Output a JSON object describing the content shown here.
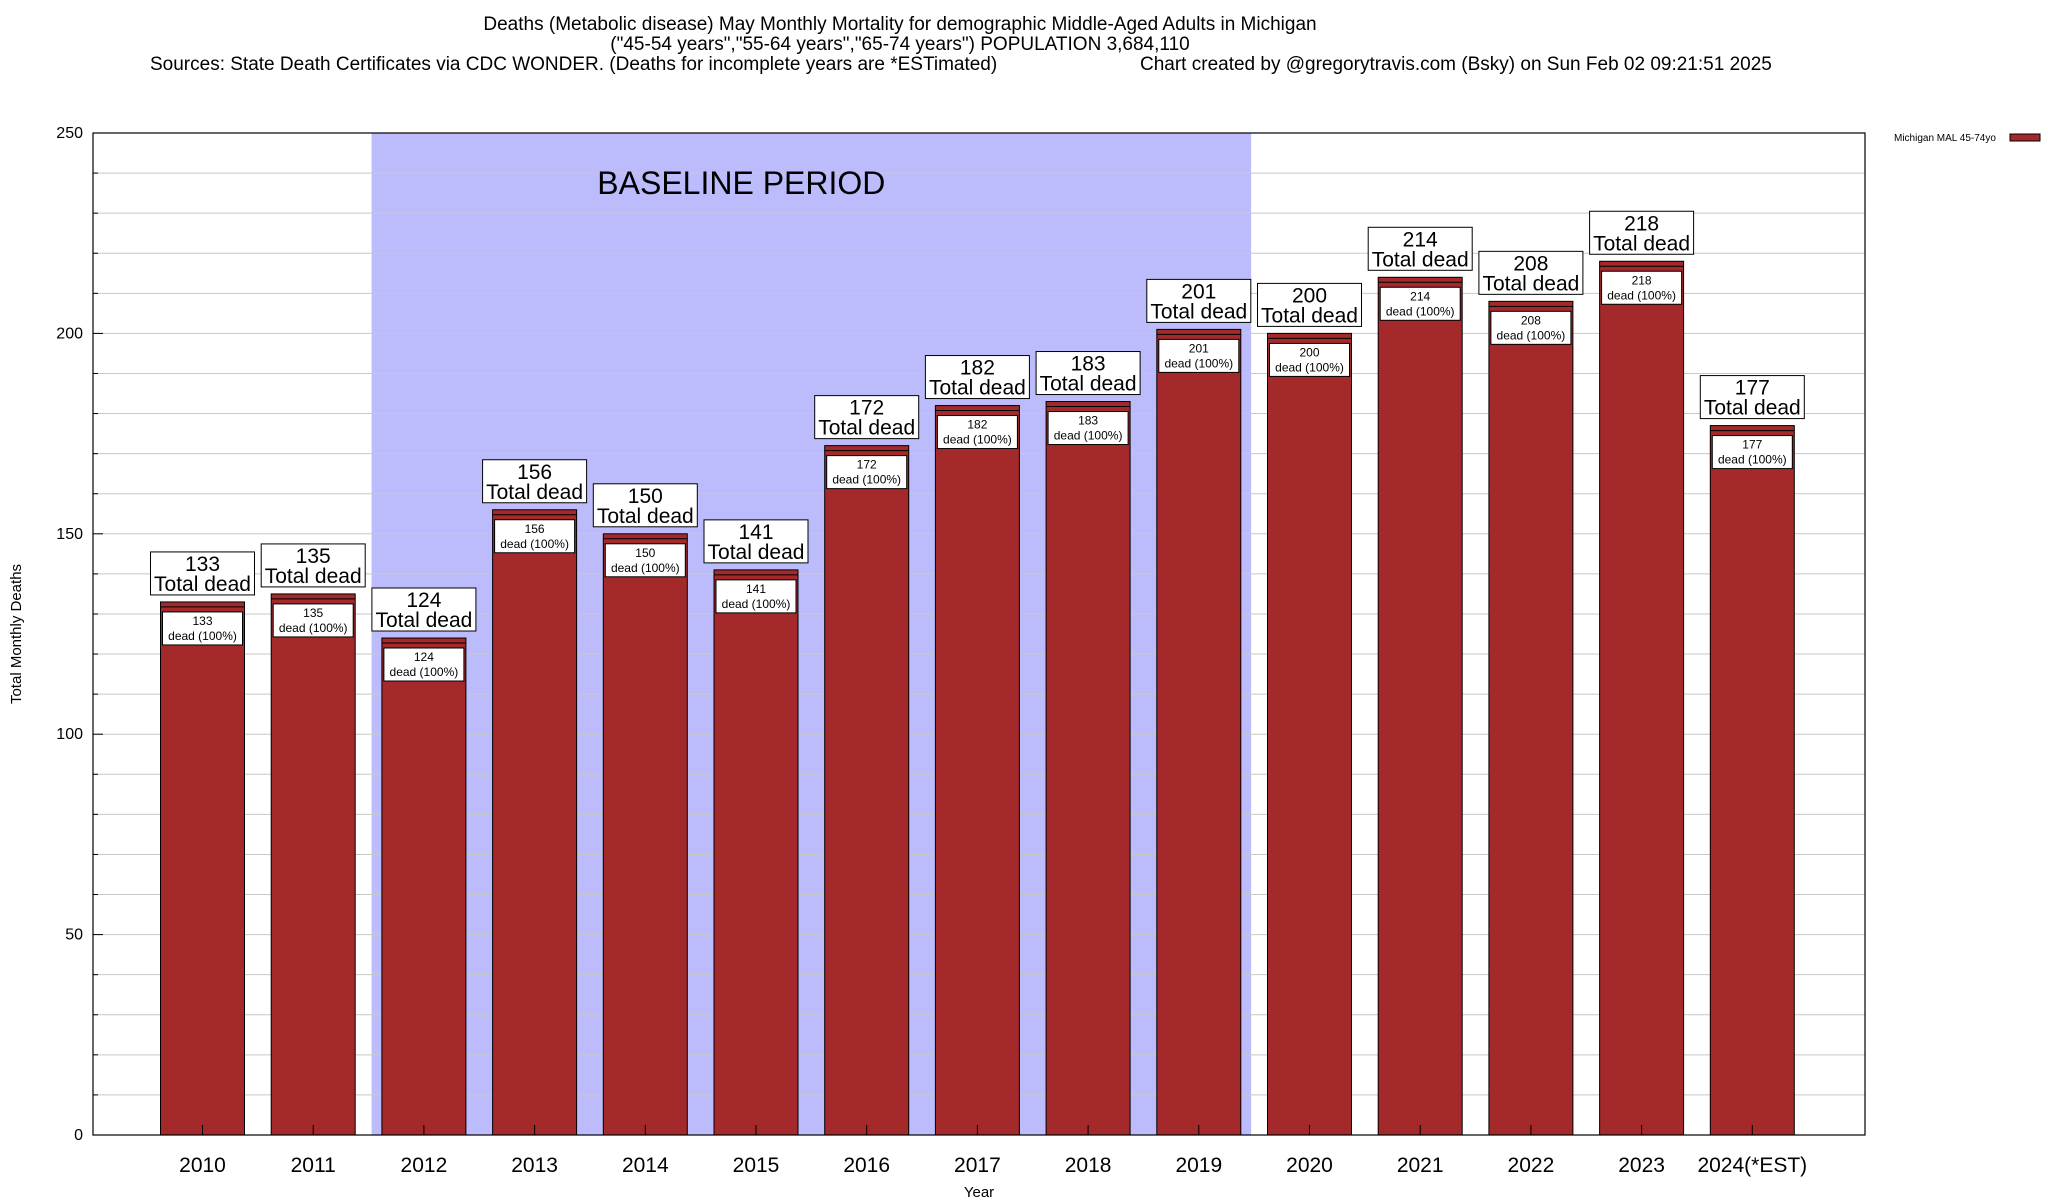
{
  "header": {
    "line1": "Deaths (Metabolic disease) May Monthly Mortality for demographic Middle-Aged Adults in Michigan",
    "line2": "(\"45-54 years\",\"55-64 years\",\"65-74 years\") POPULATION 3,684,110",
    "line3a": "Sources: State Death Certificates via CDC WONDER. (Deaths for incomplete years are *ESTimated)",
    "line3b": "Chart created by @gregorytravis.com (Bsky) on Sun Feb 02 09:21:51 2025"
  },
  "chart_data": {
    "type": "bar",
    "categories": [
      "2010",
      "2011",
      "2012",
      "2013",
      "2014",
      "2015",
      "2016",
      "2017",
      "2018",
      "2019",
      "2020",
      "2021",
      "2022",
      "2023",
      "2024(*EST)"
    ],
    "series": [
      {
        "name": "Michigan MAL 45-74yo",
        "values": [
          133,
          135,
          124,
          156,
          150,
          141,
          172,
          182,
          183,
          201,
          200,
          214,
          208,
          218,
          177
        ]
      }
    ],
    "xlabel": "Year",
    "ylabel": "Total Monthly Deaths",
    "ylim": [
      0,
      250
    ],
    "yticks": [
      0,
      50,
      100,
      150,
      200,
      250
    ],
    "grid": true,
    "legend": "top-right",
    "baseline_period": {
      "label": "BASELINE PERIOD",
      "from": "2012",
      "to": "2019"
    },
    "total_label": "Total dead",
    "inner_label": "dead (100%)",
    "colors": {
      "bar": "#a3292b",
      "baseline_shade": "#bcbcfc",
      "grid": "#c8c8c8"
    }
  }
}
